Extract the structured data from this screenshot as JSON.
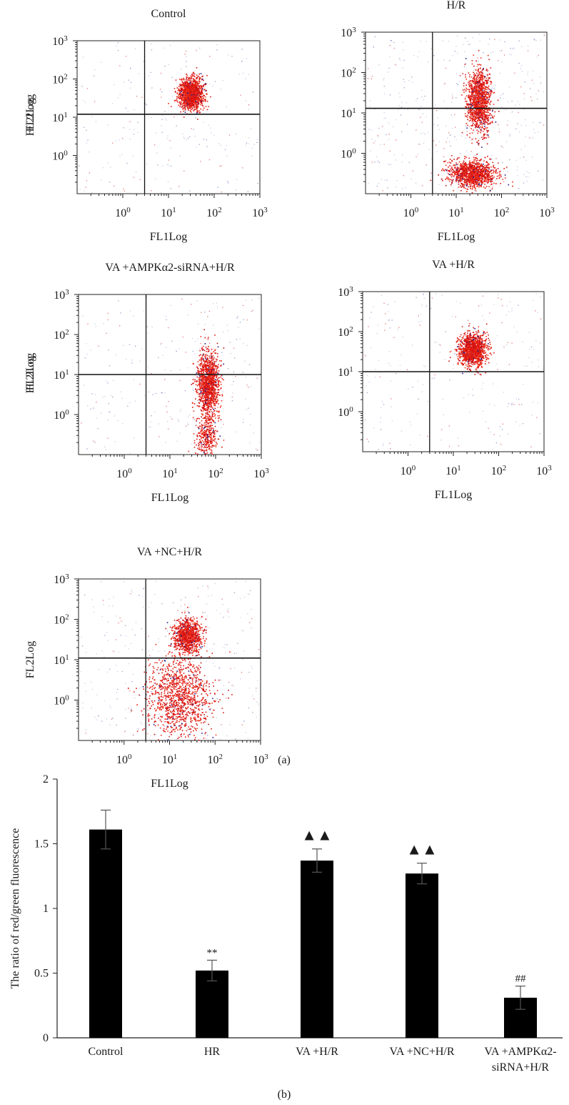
{
  "figure": {
    "panel_a_label": "(a)",
    "panel_b_label": "(b)"
  },
  "chart_data": [
    {
      "type": "scatter",
      "title": "Control",
      "xlabel": "FL1Log",
      "ylabel": "FL2Log",
      "scale": "log",
      "xlim": [
        0.1,
        1000
      ],
      "ylim": [
        0.1,
        1000
      ],
      "ticks": [
        "10^0",
        "10^1",
        "10^2",
        "10^3"
      ],
      "gates": {
        "x": 3,
        "y": 12
      },
      "clusters": [
        {
          "cx_log10": 1.48,
          "cy_log10": 1.62,
          "sx": 0.13,
          "sy": 0.2,
          "n": 1400
        }
      ],
      "spread_n": 220
    },
    {
      "type": "scatter",
      "title": "H/R",
      "xlabel": "FL1Log",
      "ylabel": "FL2Log",
      "scale": "log",
      "xlim": [
        0.1,
        1000
      ],
      "ylim": [
        0.1,
        1000
      ],
      "ticks": [
        "10^0",
        "10^1",
        "10^2",
        "10^3"
      ],
      "gates": {
        "x": 3,
        "y": 13
      },
      "clusters": [
        {
          "cx_log10": 1.5,
          "cy_log10": 1.3,
          "sx": 0.13,
          "sy": 0.38,
          "n": 1300
        },
        {
          "cx_log10": 1.35,
          "cy_log10": -0.5,
          "sx": 0.25,
          "sy": 0.17,
          "n": 1200
        }
      ],
      "spread_n": 420
    },
    {
      "type": "scatter",
      "title": "VA +AMPKα2-siRNA+H/R",
      "xlabel": "FL1Log",
      "ylabel": "FL2Log",
      "scale": "log",
      "xlim": [
        0.1,
        1000
      ],
      "ylim": [
        0.1,
        1000
      ],
      "ticks": [
        "10^0",
        "10^1",
        "10^2",
        "10^3"
      ],
      "gates": {
        "x": 3,
        "y": 10
      },
      "clusters": [
        {
          "cx_log10": 1.83,
          "cy_log10": 0.75,
          "sx": 0.12,
          "sy": 0.42,
          "n": 1300
        },
        {
          "cx_log10": 1.8,
          "cy_log10": -0.55,
          "sx": 0.12,
          "sy": 0.25,
          "n": 300
        }
      ],
      "spread_n": 240
    },
    {
      "type": "scatter",
      "title": "VA +H/R",
      "xlabel": "FL1Log",
      "ylabel": "FL2Log",
      "scale": "log",
      "xlim": [
        0.1,
        1000
      ],
      "ylim": [
        0.1,
        1000
      ],
      "ticks": [
        "10^0",
        "10^1",
        "10^2",
        "10^3"
      ],
      "gates": {
        "x": 3,
        "y": 10
      },
      "clusters": [
        {
          "cx_log10": 1.42,
          "cy_log10": 1.55,
          "sx": 0.15,
          "sy": 0.2,
          "n": 1400
        }
      ],
      "spread_n": 230
    },
    {
      "type": "scatter",
      "title": "VA +NC+H/R",
      "xlabel": "FL1Log",
      "ylabel": "FL2Log",
      "scale": "log",
      "xlim": [
        0.1,
        1000
      ],
      "ylim": [
        0.1,
        1000
      ],
      "ticks": [
        "10^0",
        "10^1",
        "10^2",
        "10^3"
      ],
      "gates": {
        "x": 3,
        "y": 11
      },
      "clusters": [
        {
          "cx_log10": 1.38,
          "cy_log10": 1.6,
          "sx": 0.15,
          "sy": 0.2,
          "n": 1000
        },
        {
          "cx_log10": 1.2,
          "cy_log10": 0.1,
          "sx": 0.35,
          "sy": 0.55,
          "n": 1200
        }
      ],
      "spread_n": 300
    },
    {
      "type": "bar",
      "title": "",
      "ylabel": "The ratio of red/green fluorescence",
      "xlabel": "",
      "categories": [
        "Control",
        "HR",
        "VA +H/R",
        "VA +NC+H/R",
        "VA +AMPKα2-siRNA+H/R"
      ],
      "category_lines": [
        [
          "Control"
        ],
        [
          "HR"
        ],
        [
          "VA +H/R"
        ],
        [
          "VA +NC+H/R"
        ],
        [
          "VA +AMPKα2-",
          "siRNA+H/R"
        ]
      ],
      "values": [
        1.61,
        0.52,
        1.37,
        1.27,
        0.31
      ],
      "errors": [
        0.15,
        0.08,
        0.09,
        0.08,
        0.09
      ],
      "annotations": [
        "",
        "**",
        "▲▲",
        "▲▲",
        "##"
      ],
      "ylim": [
        0,
        2
      ],
      "yticks": [
        0,
        0.5,
        1,
        1.5,
        2
      ],
      "ytick_labels": [
        "0",
        "0.5",
        "1",
        "1.5",
        "2"
      ],
      "bar_color": "#000000",
      "dot_color": "#e60f0f"
    }
  ]
}
